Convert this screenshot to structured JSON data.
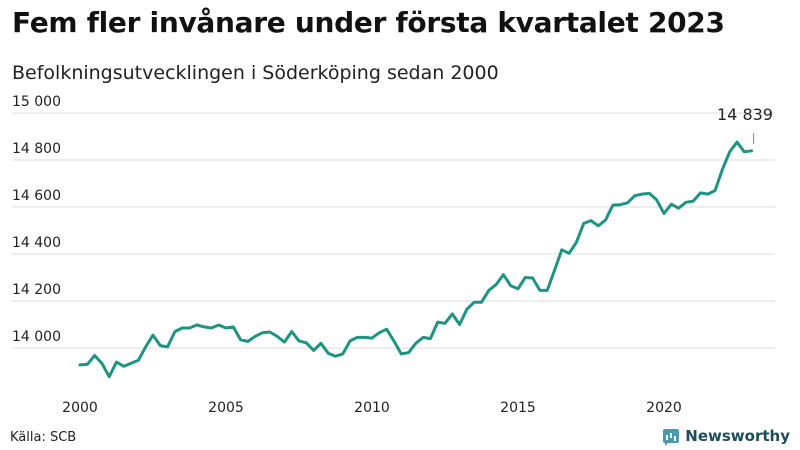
{
  "title": "Fem fler invånare under första kvartalet 2023",
  "subtitle": "Befolkningsutvecklingen i Söderköping sedan 2000",
  "source": "Källa: SCB",
  "brand": "Newsworthy",
  "colors": {
    "line": "#1f9483",
    "grid": "#dddddd",
    "text": "#222222"
  },
  "chart_data": {
    "type": "line",
    "title": "Fem fler invånare under första kvartalet 2023",
    "subtitle": "Befolkningsutvecklingen i Söderköping sedan 2000",
    "xlabel": "",
    "ylabel": "",
    "xlim": [
      2000,
      2023.25
    ],
    "ylim": [
      13900,
      15000
    ],
    "x_ticks": [
      2000,
      2005,
      2010,
      2015,
      2020
    ],
    "x_tick_labels": [
      "2000",
      "2005",
      "2010",
      "2015",
      "2020"
    ],
    "y_ticks": [
      14000,
      14200,
      14400,
      14600,
      14800,
      15000
    ],
    "y_tick_labels": [
      "14 000",
      "14 200",
      "14 400",
      "14 600",
      "14 800",
      "15 000"
    ],
    "grid": true,
    "annotation": {
      "x": 2023,
      "y": 14839,
      "label": "14 839"
    },
    "series": [
      {
        "x": [
          2000.0,
          2000.25,
          2000.5,
          2000.75,
          2001.0,
          2001.25,
          2001.5,
          2001.75,
          2002.0,
          2002.25,
          2002.5,
          2002.75,
          2003.0,
          2003.25,
          2003.5,
          2003.75,
          2004.0,
          2004.25,
          2004.5,
          2004.75,
          2005.0,
          2005.25,
          2005.5,
          2005.75,
          2006.0,
          2006.25,
          2006.5,
          2006.75,
          2007.0,
          2007.25,
          2007.5,
          2007.75,
          2008.0,
          2008.25,
          2008.5,
          2008.75,
          2009.0,
          2009.25,
          2009.5,
          2009.75,
          2010.0,
          2010.25,
          2010.5,
          2010.75,
          2011.0,
          2011.25,
          2011.5,
          2011.75,
          2012.0,
          2012.25,
          2012.5,
          2012.75,
          2013.0,
          2013.25,
          2013.5,
          2013.75,
          2014.0,
          2014.25,
          2014.5,
          2014.75,
          2015.0,
          2015.25,
          2015.5,
          2015.75,
          2016.0,
          2016.25,
          2016.5,
          2016.75,
          2017.0,
          2017.25,
          2017.5,
          2017.75,
          2018.0,
          2018.25,
          2018.5,
          2018.75,
          2019.0,
          2019.25,
          2019.5,
          2019.75,
          2020.0,
          2020.25,
          2020.5,
          2020.75,
          2021.0,
          2021.25,
          2021.5,
          2021.75,
          2022.0,
          2022.25,
          2022.5,
          2022.75,
          2023.0
        ],
        "values": [
          13928,
          13930,
          13968,
          13935,
          13878,
          13940,
          13922,
          13935,
          13948,
          14005,
          14055,
          14010,
          14005,
          14070,
          14085,
          14085,
          14098,
          14090,
          14085,
          14098,
          14085,
          14090,
          14035,
          14028,
          14050,
          14065,
          14068,
          14050,
          14025,
          14070,
          14030,
          14022,
          13990,
          14020,
          13978,
          13965,
          13975,
          14030,
          14045,
          14045,
          14042,
          14065,
          14080,
          14030,
          13975,
          13980,
          14020,
          14045,
          14040,
          14110,
          14105,
          14145,
          14100,
          14165,
          14195,
          14195,
          14245,
          14270,
          14312,
          14265,
          14252,
          14300,
          14298,
          14245,
          14245,
          14330,
          14418,
          14403,
          14450,
          14530,
          14542,
          14520,
          14545,
          14608,
          14610,
          14618,
          14648,
          14655,
          14658,
          14630,
          14572,
          14612,
          14595,
          14620,
          14625,
          14660,
          14655,
          14670,
          14760,
          14835,
          14876,
          14835,
          14839
        ]
      }
    ]
  }
}
